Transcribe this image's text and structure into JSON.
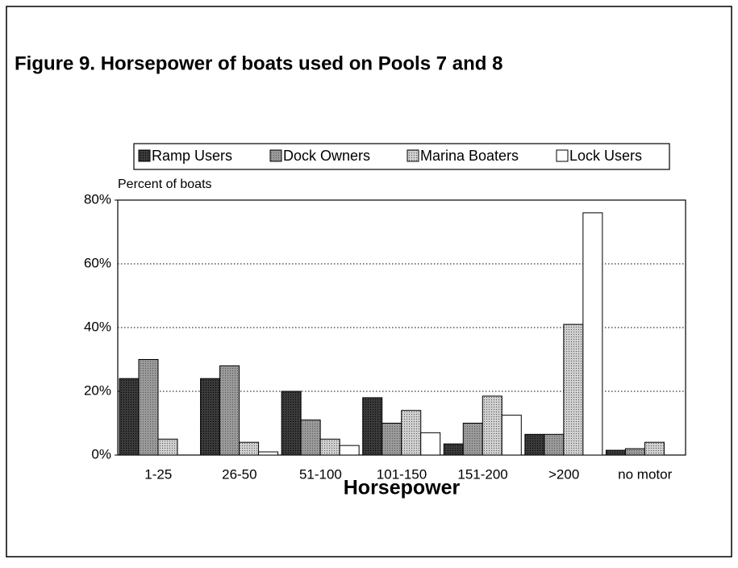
{
  "chart_data": {
    "type": "bar",
    "title": "Figure 9. Horsepower of boats used on Pools 7 and 8",
    "y_label": "Percent of boats",
    "x_label": "Horsepower",
    "categories": [
      "1-25",
      "26-50",
      "51-100",
      "101-150",
      "151-200",
      ">200",
      "no motor"
    ],
    "series": [
      {
        "name": "Ramp Users",
        "color": "#3a3a3a",
        "values": [
          24,
          24,
          20,
          18,
          3.5,
          6.5,
          1.5
        ]
      },
      {
        "name": "Dock Owners",
        "color": "#9a9a9a",
        "values": [
          30,
          28,
          11,
          10,
          10,
          6.5,
          2
        ]
      },
      {
        "name": "Marina Boaters",
        "color": "#cfcfcf",
        "values": [
          5,
          4,
          5,
          14,
          18.5,
          41,
          4
        ]
      },
      {
        "name": "Lock Users",
        "color": "#ffffff",
        "values": [
          0,
          1,
          3,
          7,
          12.5,
          76,
          0
        ]
      }
    ],
    "ylim": [
      0,
      80
    ],
    "yticks": [
      {
        "value": 0,
        "label": "0%"
      },
      {
        "value": 20,
        "label": "20%"
      },
      {
        "value": 40,
        "label": "40%"
      },
      {
        "value": 60,
        "label": "60%"
      },
      {
        "value": 80,
        "label": "80%"
      }
    ],
    "grid": true,
    "legend": "top"
  }
}
